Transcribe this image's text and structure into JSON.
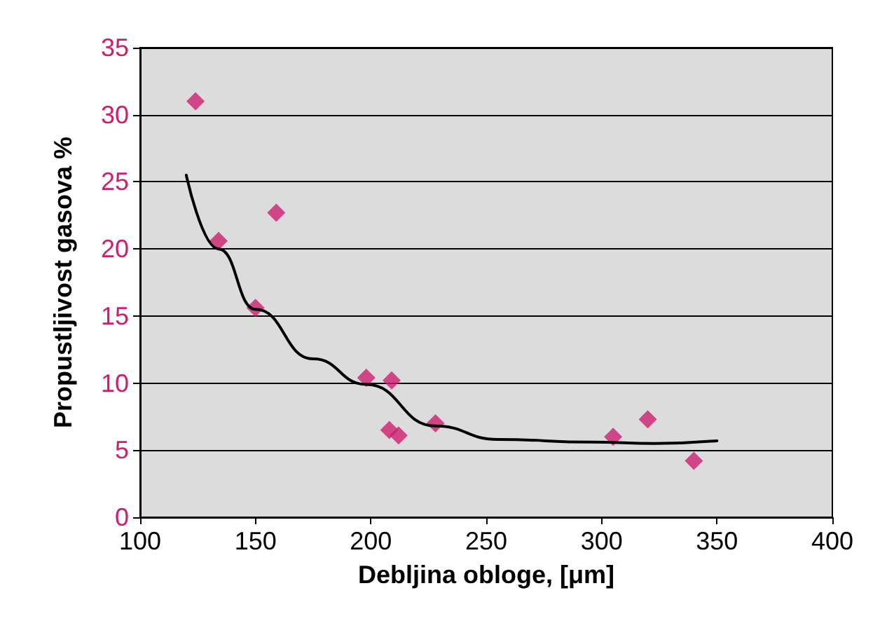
{
  "chart_data": {
    "type": "scatter",
    "xlabel": "Debljina obloge, [μm]",
    "ylabel": "Propustljivost gasova %",
    "xlim": [
      100,
      400
    ],
    "xticks": [
      100,
      150,
      200,
      250,
      300,
      350,
      400
    ],
    "ylim": [
      0,
      35
    ],
    "yticks": [
      0,
      5,
      10,
      15,
      20,
      25,
      30,
      35
    ],
    "grid": "y",
    "marker": "diamond",
    "series": [
      {
        "color": "#cc1f70",
        "x": [
          124,
          134,
          150,
          159,
          198,
          209,
          208,
          212,
          228,
          305,
          320,
          340
        ],
        "values": [
          31.0,
          20.6,
          15.6,
          22.7,
          10.4,
          10.2,
          6.5,
          6.1,
          7.0,
          6.0,
          7.3,
          4.2
        ]
      },
      {
        "type": "line",
        "color": "#000000",
        "marker": "none",
        "x": [
          120,
          134,
          150,
          175,
          198,
          228,
          255,
          296,
          323,
          350
        ],
        "values": [
          25.5,
          20.0,
          15.5,
          11.8,
          9.9,
          6.8,
          5.8,
          5.6,
          5.5,
          5.7
        ]
      }
    ]
  }
}
